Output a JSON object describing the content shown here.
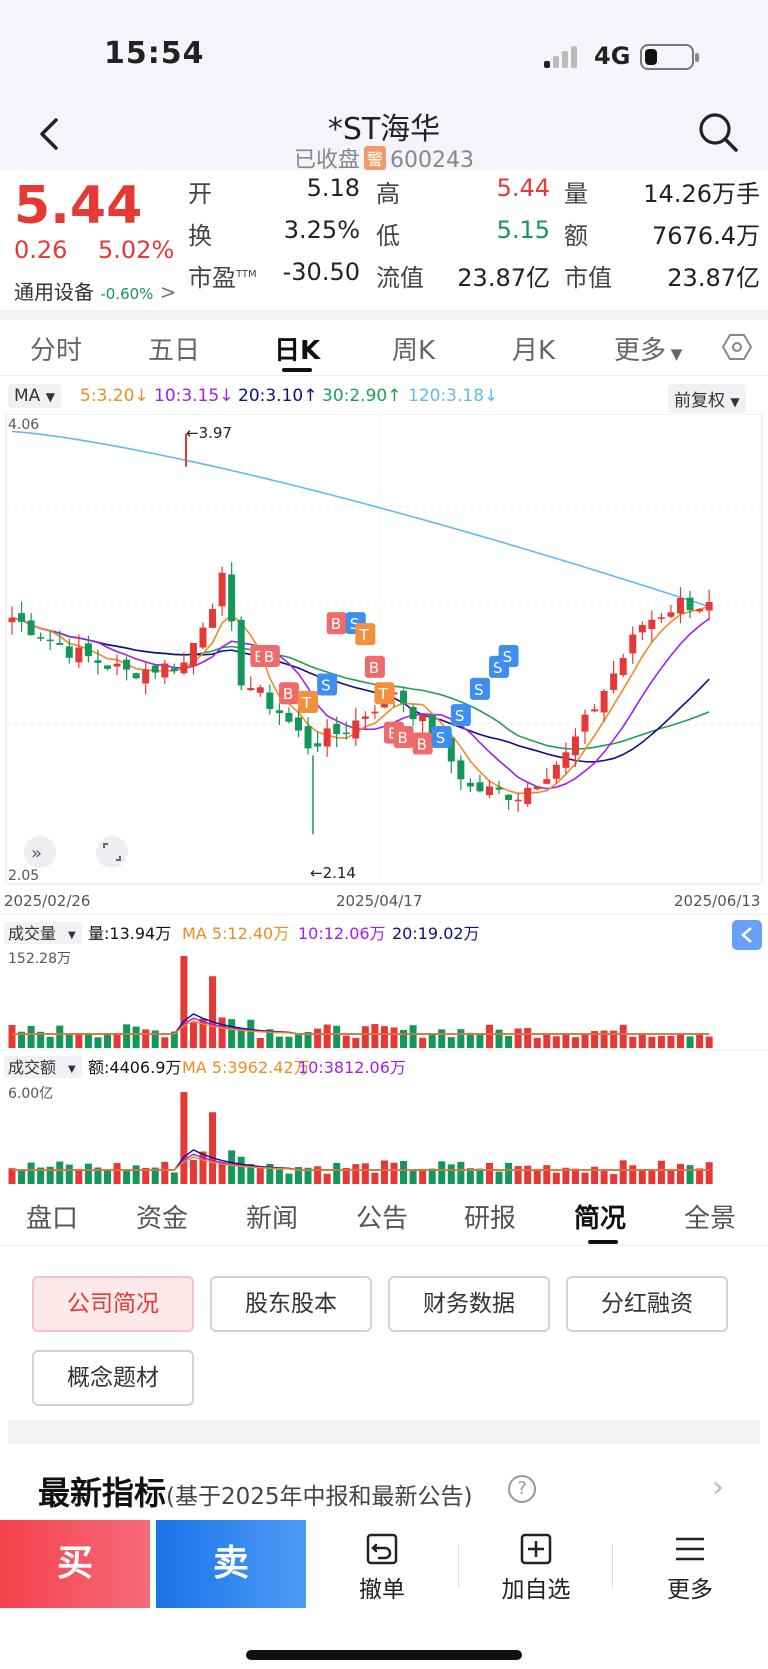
{
  "status": {
    "time": "15:54",
    "network": "4G"
  },
  "header": {
    "title": "*ST海华",
    "status": "已收盘",
    "warn_badge": "警",
    "code": "600243"
  },
  "quote": {
    "price": "5.44",
    "change": "0.26",
    "change_pct": "5.02%",
    "sector": "通用设备",
    "sector_pct": "-0.60%",
    "labels": {
      "open": "开",
      "high": "高",
      "volume": "量",
      "turnover": "换",
      "low": "低",
      "amount": "额",
      "pe": "市盈",
      "float_cap": "流值",
      "market_cap": "市值"
    },
    "values": {
      "open": "5.18",
      "high": "5.44",
      "volume": "14.26万手",
      "turnover": "3.25%",
      "low": "5.15",
      "amount": "7676.4万",
      "pe": "-30.50",
      "float_cap": "23.87亿",
      "market_cap": "23.87亿"
    },
    "pe_suffix": "TTM"
  },
  "period_tabs": [
    "分时",
    "五日",
    "日K",
    "周K",
    "月K",
    "更多"
  ],
  "ma_bar": {
    "select": "MA",
    "ma5": "5:3.20",
    "ma10": "10:3.15",
    "ma20": "20:3.10",
    "ma30": "30:2.90",
    "ma120": "120:3.18",
    "adjust": "前复权"
  },
  "chart": {
    "ymax": "4.06",
    "ymin": "2.05",
    "annot_high": "3.97",
    "annot_low": "2.14",
    "dates": [
      "2025/02/26",
      "2025/04/17",
      "2025/06/13"
    ],
    "colors": {
      "up": "#e53935",
      "down": "#14975a",
      "ma5": "#f08a24",
      "ma10": "#a020f0",
      "ma20": "#101080",
      "ma30": "#1e9e5a",
      "ma120": "#63b8f2"
    }
  },
  "chart_data": {
    "type": "candlestick",
    "x_range": [
      "2025/02/26",
      "2025/06/13"
    ],
    "ylim": [
      2.05,
      4.06
    ],
    "marked_high": 3.97,
    "marked_low": 2.14,
    "ma_latest": {
      "MA5": 3.2,
      "MA10": 3.15,
      "MA20": 3.1,
      "MA30": 2.9,
      "MA120": 3.18
    },
    "volume_panel": {
      "label": "成交量",
      "latest": "量:13.94万",
      "ma5": "MA 5:12.40万",
      "ma10": "10:12.06万",
      "ma20": "20:19.02万",
      "ymax": "152.28万"
    },
    "amount_panel": {
      "label": "成交额",
      "latest": "额:4406.9万",
      "ma5": "MA 5:3962.42万",
      "ma10": "10:3812.06万",
      "ymax": "6.00亿"
    }
  },
  "info_tabs": [
    "盘口",
    "资金",
    "新闻",
    "公告",
    "研报",
    "简况",
    "全景"
  ],
  "profile_buttons": [
    "公司简况",
    "股东股本",
    "财务数据",
    "分红融资",
    "概念题材"
  ],
  "latest": {
    "title": "最新指标",
    "note": "(基于2025年中报和最新公告)"
  },
  "bottom": {
    "buy": "买",
    "sell": "卖",
    "cancel": "撤单",
    "watch": "加自选",
    "more": "更多"
  }
}
